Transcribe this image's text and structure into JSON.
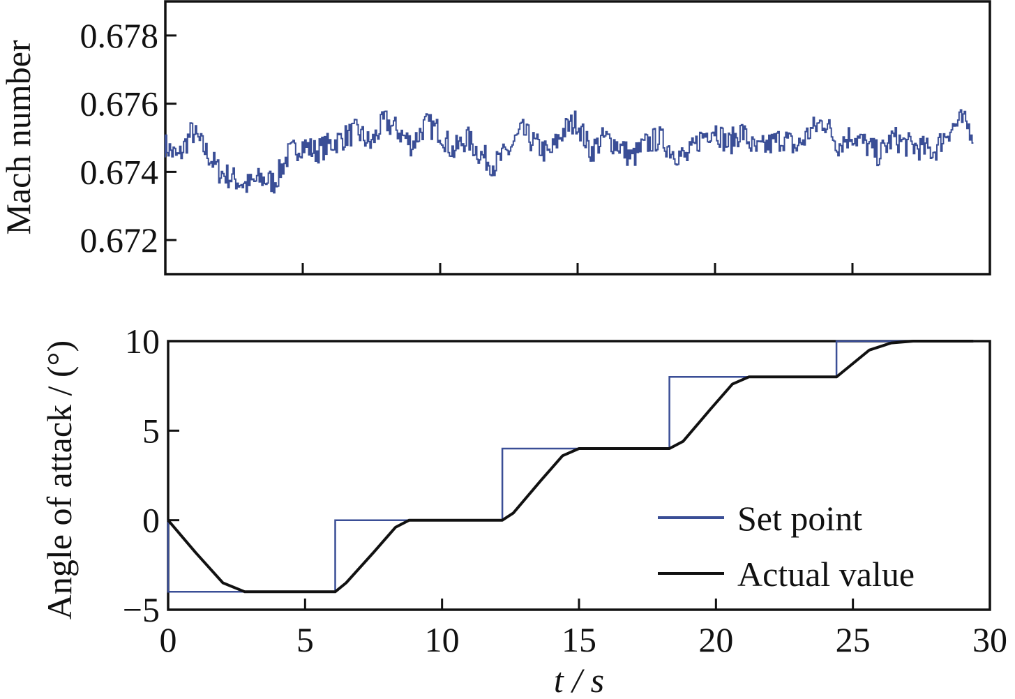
{
  "colors": {
    "set_point": "#3a4e96",
    "actual": "#111111",
    "mach": "#3a4e96"
  },
  "chart_data": [
    {
      "type": "line",
      "title": "",
      "xlabel": "",
      "ylabel": "Mach number",
      "xlim": [
        0,
        30
      ],
      "ylim": [
        0.671,
        0.679
      ],
      "x_ticks": [
        5,
        10,
        15,
        20,
        25
      ],
      "y_ticks": [
        "0.672",
        "0.674",
        "0.676",
        "0.678"
      ],
      "grid": false,
      "series": [
        {
          "x": [
            0,
            0.5,
            1,
            1.5,
            2,
            2.5,
            3,
            3.5,
            4,
            4.5,
            5,
            5.5,
            6,
            6.5,
            7,
            7.5,
            8,
            8.5,
            9,
            9.5,
            10,
            10.5,
            11,
            11.5,
            12,
            12.5,
            13,
            13.5,
            14,
            14.5,
            15,
            15.5,
            16,
            16.5,
            17,
            17.5,
            18,
            18.5,
            19,
            19.5,
            20,
            20.5,
            21,
            21.5,
            22,
            22.5,
            23,
            23.5,
            24,
            24.5,
            25,
            25.5,
            26,
            26.5,
            27,
            27.5,
            28,
            28.5,
            29,
            29.4
          ],
          "values": [
            0.6748,
            0.6744,
            0.6752,
            0.6746,
            0.674,
            0.6738,
            0.6736,
            0.6738,
            0.6737,
            0.6745,
            0.6748,
            0.6746,
            0.6748,
            0.675,
            0.6752,
            0.6748,
            0.6755,
            0.6752,
            0.6748,
            0.6754,
            0.6752,
            0.6746,
            0.675,
            0.6745,
            0.6742,
            0.6746,
            0.6752,
            0.6748,
            0.6745,
            0.6752,
            0.6755,
            0.6746,
            0.675,
            0.6748,
            0.6744,
            0.6748,
            0.675,
            0.6746,
            0.6744,
            0.675,
            0.6753,
            0.6748,
            0.6752,
            0.6746,
            0.6748,
            0.675,
            0.6747,
            0.6752,
            0.6755,
            0.6748,
            0.6751,
            0.6748,
            0.6745,
            0.675,
            0.6748,
            0.6747,
            0.6746,
            0.6752,
            0.6755,
            0.6752
          ]
        }
      ]
    },
    {
      "type": "line",
      "title": "",
      "xlabel": "t / s",
      "ylabel": "Angle of attack / (°)",
      "xlim": [
        0,
        30
      ],
      "ylim": [
        -5,
        10
      ],
      "x_ticks": [
        "0",
        "5",
        "10",
        "15",
        "20",
        "25",
        "30"
      ],
      "y_ticks": [
        "−5",
        "0",
        "5",
        "10"
      ],
      "grid": false,
      "legend": "bottom-right",
      "series": [
        {
          "name": "Set point",
          "x": [
            0,
            0,
            6.1,
            6.1,
            12.2,
            12.2,
            18.3,
            18.3,
            24.4,
            24.4,
            29.4
          ],
          "values": [
            0,
            -4,
            -4,
            0,
            0,
            4,
            4,
            8,
            8,
            10,
            10
          ]
        },
        {
          "name": "Actual value",
          "x": [
            0,
            1,
            2,
            2.8,
            6.1,
            6.5,
            7.5,
            8.3,
            8.8,
            12.2,
            12.6,
            13.6,
            14.4,
            15,
            18.3,
            18.8,
            19.8,
            20.6,
            21.2,
            24.4,
            24.8,
            25.6,
            26.4,
            27.2,
            29.4
          ],
          "values": [
            0,
            -1.8,
            -3.5,
            -4,
            -4,
            -3.5,
            -1.8,
            -0.4,
            0,
            0,
            0.4,
            2.2,
            3.6,
            4,
            4,
            4.4,
            6.2,
            7.6,
            8,
            8,
            8.5,
            9.5,
            9.9,
            10,
            10
          ]
        }
      ]
    }
  ]
}
